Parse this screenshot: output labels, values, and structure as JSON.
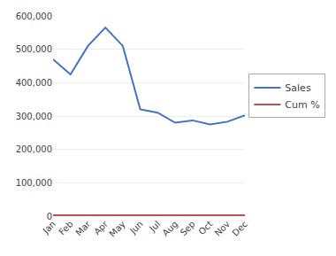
{
  "chart_data": {
    "type": "line",
    "categories": [
      "Jan",
      "Feb",
      "Mar",
      "Apr",
      "May",
      "Jun",
      "Jul",
      "Aug",
      "Sep",
      "Oct",
      "Nov",
      "Dec"
    ],
    "series": [
      {
        "name": "Sales",
        "color": "#4472C4",
        "values": [
          470000,
          425000,
          510000,
          565000,
          510000,
          320000,
          310000,
          280000,
          287000,
          275000,
          283000,
          302000
        ]
      },
      {
        "name": "Cum %",
        "color": "#C0504D",
        "axis": "y2",
        "values": [
          0.5,
          0.5,
          0.5,
          0.5,
          0.5,
          0.5,
          0.5,
          0.5,
          0.5,
          0.5,
          0.5,
          0.5
        ]
      }
    ],
    "ylim": [
      0,
      600000
    ],
    "yticks": [
      0,
      {
        "value": 100000,
        "label": "100,000"
      },
      {
        "value": 200000,
        "label": "200,000"
      },
      {
        "value": 300000,
        "label": "300,000"
      },
      {
        "value": 400000,
        "label": "400,000"
      },
      {
        "value": 500000,
        "label": "500,000"
      },
      {
        "value": 600000,
        "label": "600,000"
      }
    ],
    "y2lim": [
      0,
      120
    ],
    "y2ticks": [],
    "grid": true,
    "legend": "right"
  }
}
